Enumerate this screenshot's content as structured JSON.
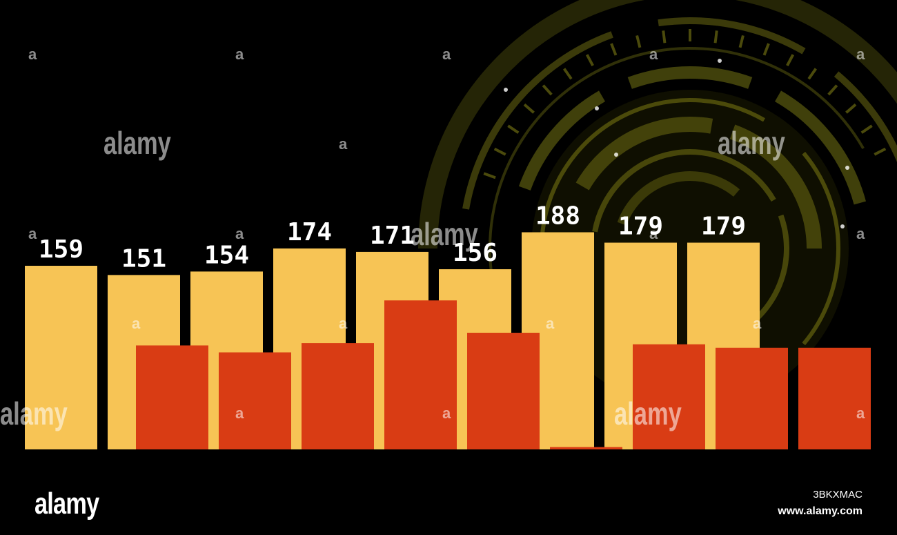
{
  "chart_data": {
    "type": "bar",
    "categories": [
      "",
      "",
      "",
      "",
      "",
      "",
      "",
      "",
      "",
      "",
      ""
    ],
    "series": [
      {
        "color": "#f7c455",
        "values": [
          159,
          151,
          154,
          174,
          171,
          156,
          188,
          179,
          179,
          null,
          null
        ]
      },
      {
        "color": "#d93c14",
        "values": [
          null,
          90,
          84,
          92,
          129,
          101,
          2,
          91,
          88,
          88,
          null
        ]
      }
    ],
    "labels": [
      "159",
      "151",
      "154",
      "174",
      "171",
      "156",
      "188",
      "179",
      "179"
    ],
    "ylim": [
      0,
      200
    ],
    "grid": false,
    "legend": "none"
  },
  "watermark": {
    "brand": "alamy",
    "image_id": "3BKXMAC",
    "site": "www.alamy.com",
    "small_mark": "a"
  },
  "colors": {
    "background": "#000000",
    "hud_ring": "#6b6a12",
    "bar_primary": "#f7c455",
    "bar_secondary": "#d93c14",
    "label": "#ffffff"
  }
}
